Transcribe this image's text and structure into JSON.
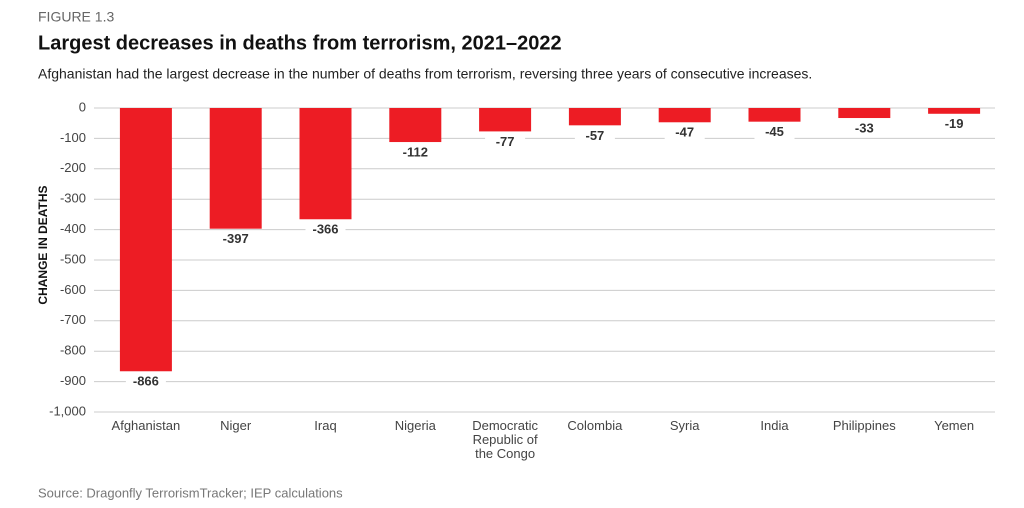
{
  "chart_data": {
    "type": "bar",
    "figure_label": "FIGURE 1.3",
    "title": "Largest decreases in deaths from terrorism, 2021–2022",
    "subtitle": "Afghanistan had the largest decrease in the number of deaths from terrorism, reversing three years of consecutive increases.",
    "y_label": "CHANGE IN DEATHS",
    "source": "Source: Dragonfly TerrorismTracker; IEP calculations",
    "categories": [
      "Afghanistan",
      "Niger",
      "Iraq",
      "Nigeria",
      "Democratic Republic of the Congo",
      "Colombia",
      "Syria",
      "India",
      "Philippines",
      "Yemen"
    ],
    "values": [
      -866,
      -397,
      -366,
      -112,
      -77,
      -57,
      -47,
      -45,
      -33,
      -19
    ],
    "color": "#ed1c24",
    "ylim": [
      -1000,
      0
    ],
    "yticks": [
      0,
      -100,
      -200,
      -300,
      -400,
      -500,
      -600,
      -700,
      -800,
      -900,
      {
        "value": -1000,
        "label": "-1,000"
      }
    ],
    "grid": true
  }
}
